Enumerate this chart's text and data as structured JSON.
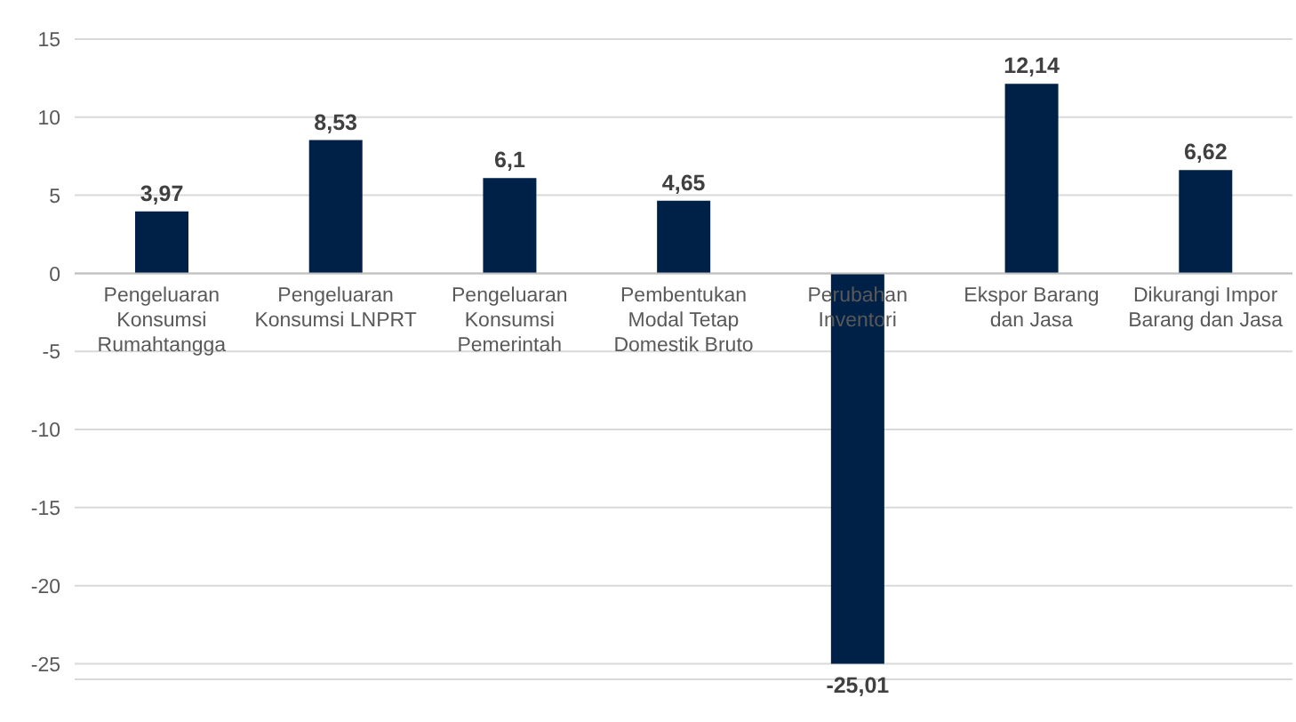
{
  "chart_data": {
    "type": "bar",
    "categories": [
      "Pengeluaran Konsumsi Rumahtangga",
      "Pengeluaran Konsumsi LNPRT",
      "Pengeluaran Konsumsi Pemerintah",
      "Pembentukan Modal Tetap Domestik Bruto",
      "Perubahan Inventori",
      "Ekspor Barang dan Jasa",
      "Dikurangi Impor Barang dan Jasa"
    ],
    "values": [
      3.97,
      8.53,
      6.1,
      4.65,
      -25.01,
      12.14,
      6.62
    ],
    "value_labels": [
      "3,97",
      "8,53",
      "6,1",
      "4,65",
      "-25,01",
      "12,14",
      "6,62"
    ],
    "color": "#002147",
    "ylim": [
      -26,
      15
    ],
    "yticks": [
      -25,
      -20,
      -15,
      -10,
      -5,
      0,
      5,
      10,
      15
    ],
    "grid": "y"
  }
}
